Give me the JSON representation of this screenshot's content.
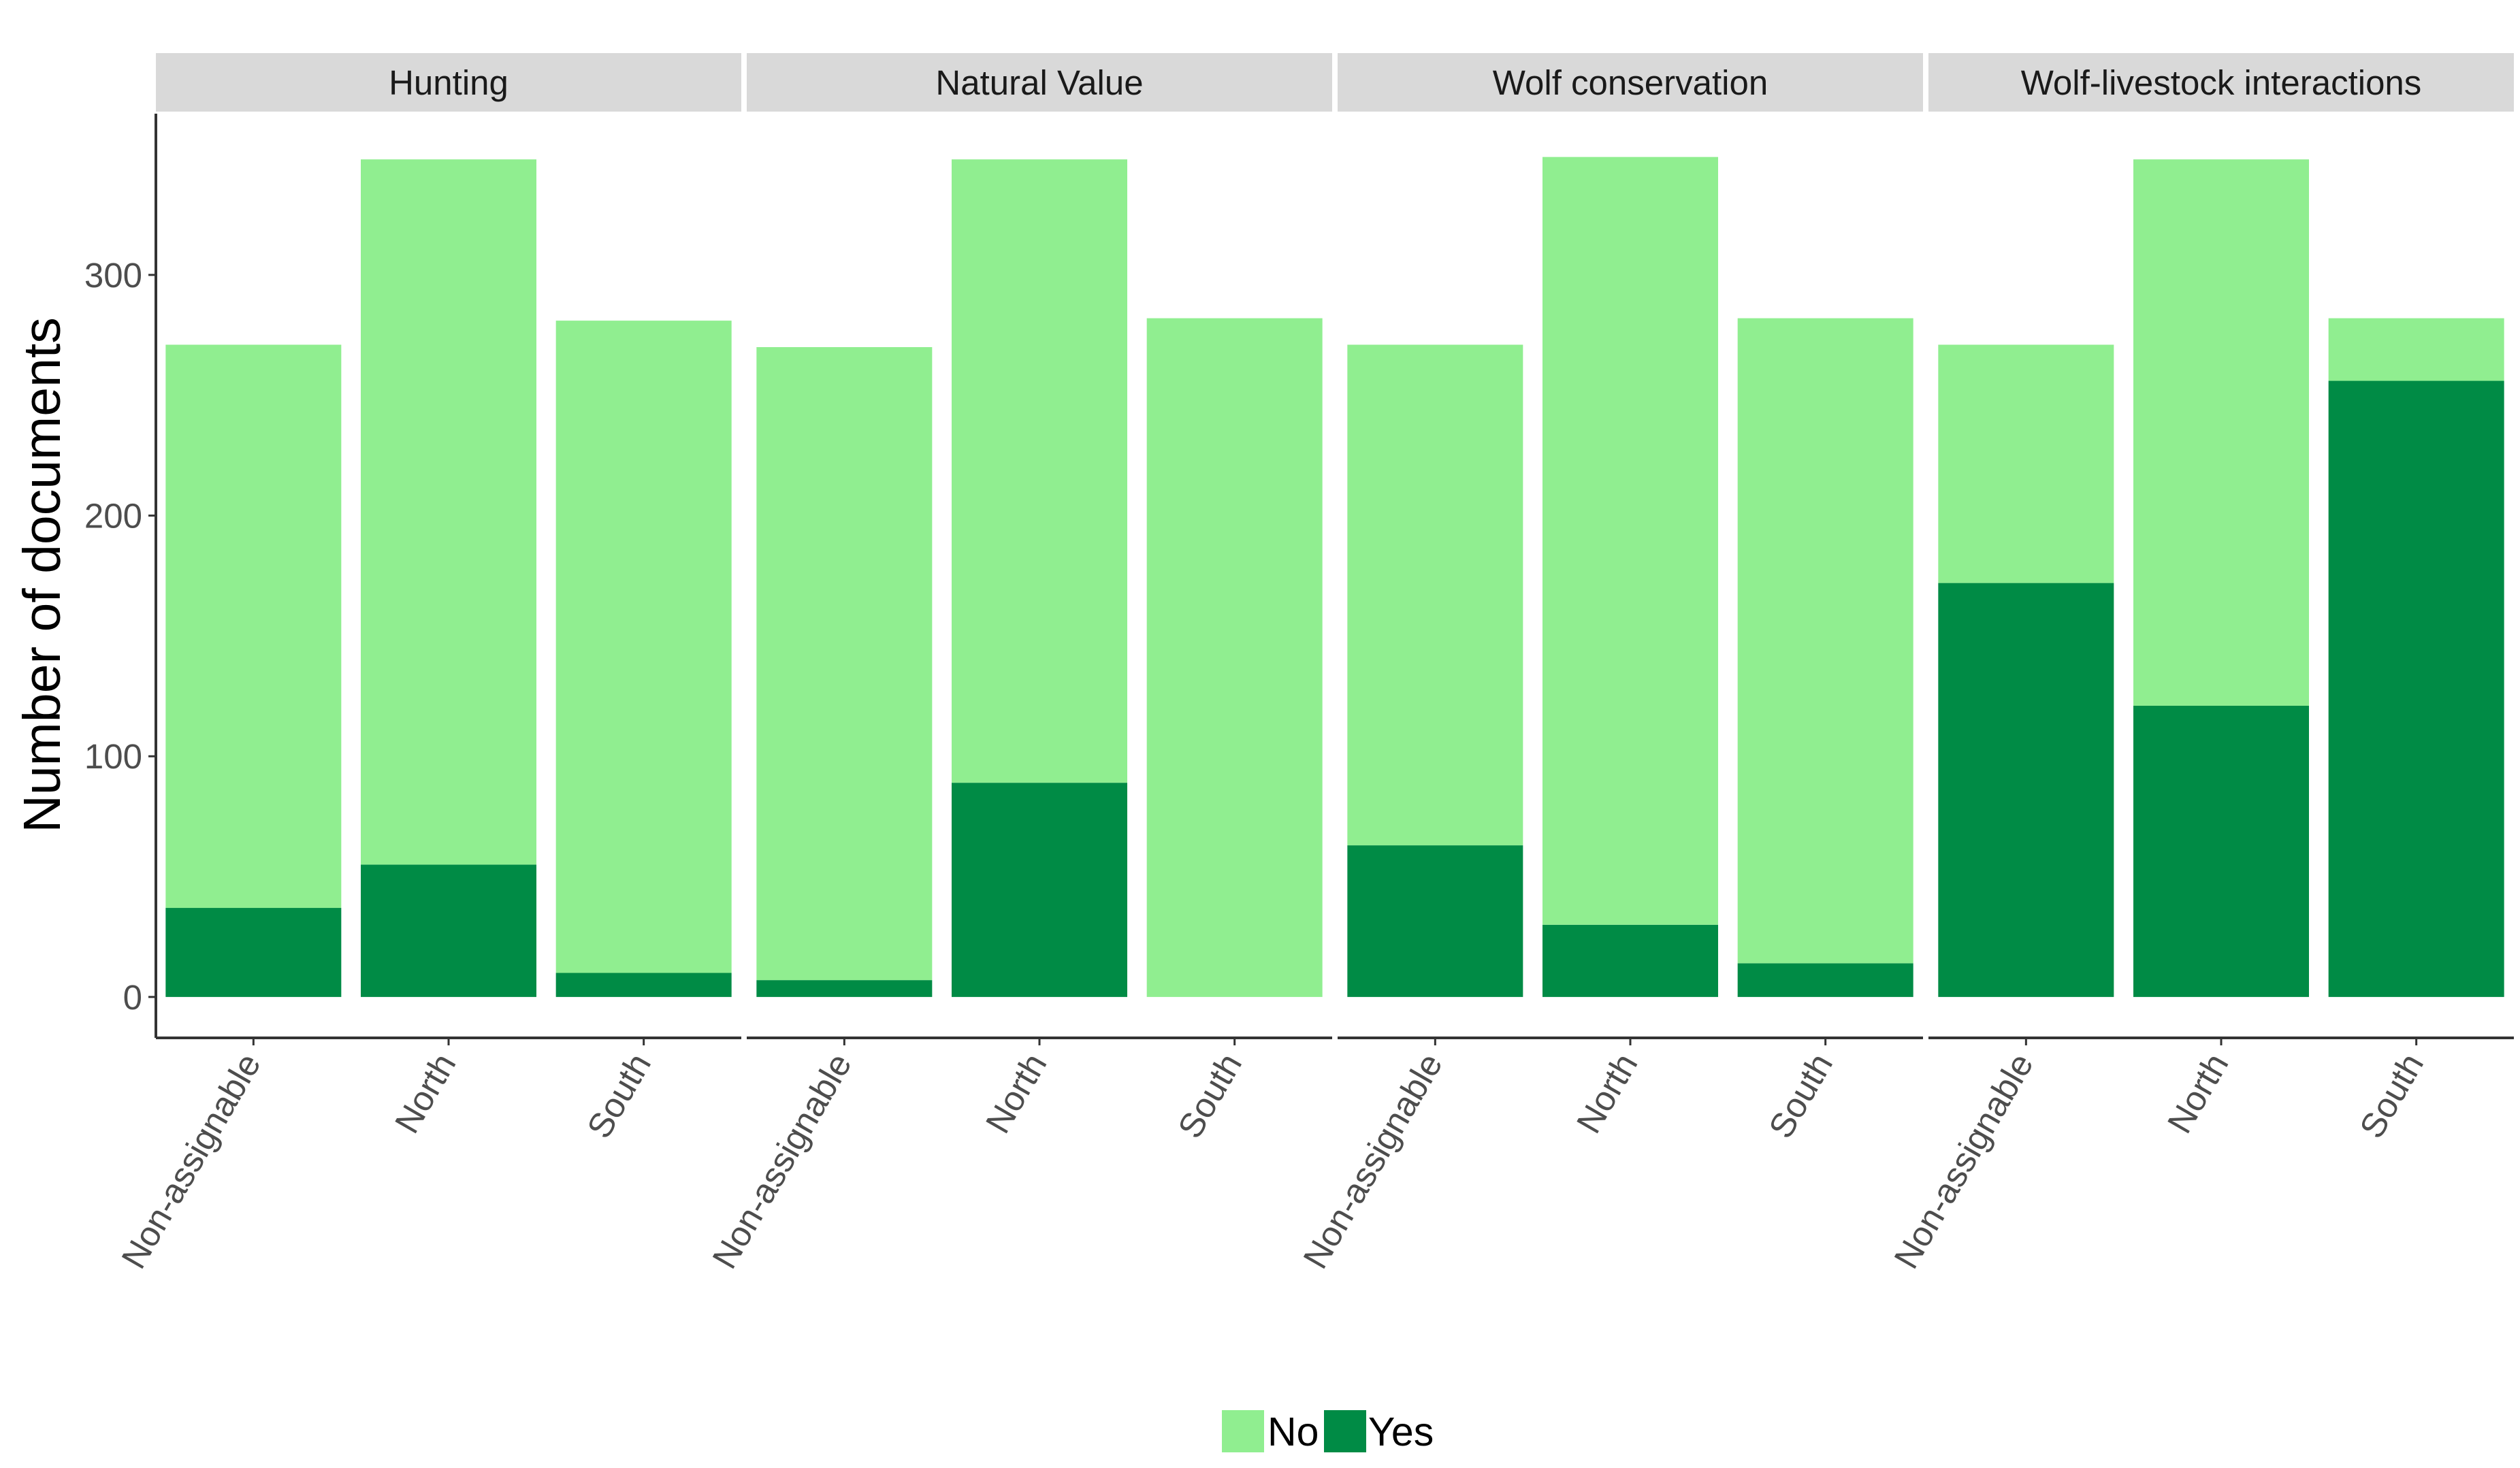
{
  "chart_data": {
    "type": "bar",
    "stacked": true,
    "facets": [
      {
        "title": "Hunting",
        "categories": [
          "Non-assignable",
          "North",
          "South"
        ],
        "series": [
          {
            "name": "No",
            "values": [
              234,
              293,
              271
            ]
          },
          {
            "name": "Yes",
            "values": [
              37,
              55,
              10
            ]
          }
        ]
      },
      {
        "title": "Natural Value",
        "categories": [
          "Non-assignable",
          "North",
          "South"
        ],
        "series": [
          {
            "name": "No",
            "values": [
              263,
              259,
              282
            ]
          },
          {
            "name": "Yes",
            "values": [
              7,
              89,
              0
            ]
          }
        ]
      },
      {
        "title": "Wolf conservation",
        "categories": [
          "Non-assignable",
          "North",
          "South"
        ],
        "series": [
          {
            "name": "No",
            "values": [
              208,
              319,
              268
            ]
          },
          {
            "name": "Yes",
            "values": [
              63,
              30,
              14
            ]
          }
        ]
      },
      {
        "title": "Wolf-livestock interactions",
        "categories": [
          "Non-assignable",
          "North",
          "South"
        ],
        "series": [
          {
            "name": "No",
            "values": [
              99,
              227,
              26
            ]
          },
          {
            "name": "Yes",
            "values": [
              172,
              121,
              256
            ]
          }
        ]
      }
    ],
    "xlabel": "",
    "ylabel": "Number of documents",
    "ylim": [
      -17,
      367
    ],
    "yticks": [
      0,
      100,
      200,
      300
    ],
    "grid": false,
    "legend": {
      "position": "bottom",
      "entries": [
        {
          "name": "No",
          "color": "#90EE90"
        },
        {
          "name": "Yes",
          "color": "#008B45"
        }
      ]
    },
    "colors": {
      "No": "#90EE90",
      "Yes": "#008B45"
    }
  }
}
